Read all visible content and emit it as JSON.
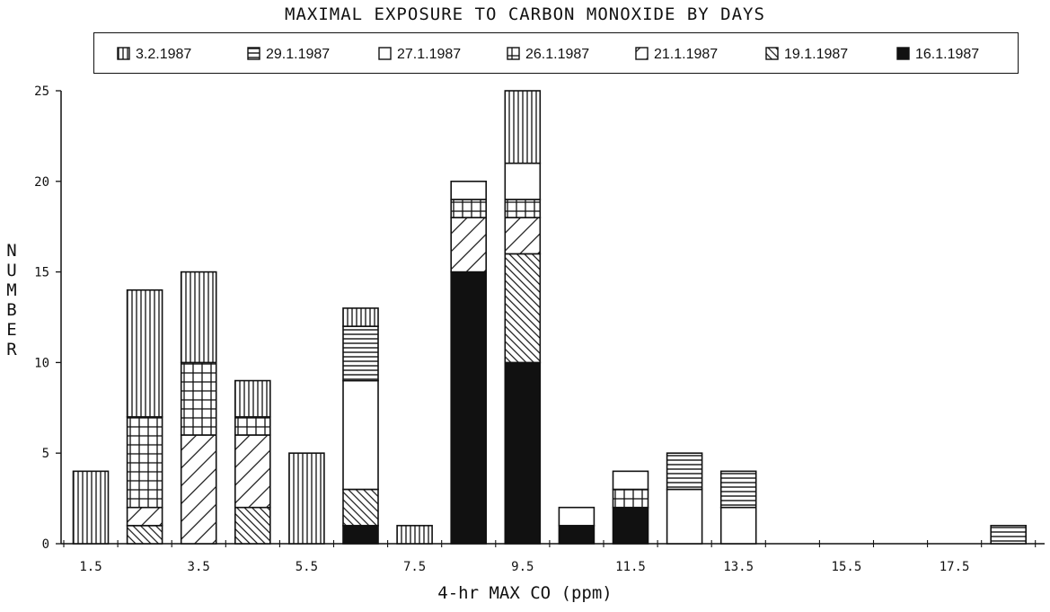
{
  "chart_data": {
    "type": "bar",
    "stacked": true,
    "title": "MAXIMAL EXPOSURE TO CARBON MONOXIDE BY DAYS",
    "xlabel": "4-hr MAX CO (ppm)",
    "ylabel": "NUMBER",
    "x": [
      1.5,
      2.5,
      3.5,
      4.5,
      5.5,
      6.5,
      7.5,
      8.5,
      9.5,
      10.5,
      11.5,
      12.5,
      13.5,
      14.5,
      15.5,
      16.5,
      17.5,
      18.5
    ],
    "x_tick_labels": [
      "1.5",
      "3.5",
      "5.5",
      "7.5",
      "9.5",
      "11.5",
      "13.5",
      "15.5",
      "17.5"
    ],
    "x_tick_values": [
      1.5,
      3.5,
      5.5,
      7.5,
      9.5,
      11.5,
      13.5,
      15.5,
      17.5
    ],
    "xlim": [
      1,
      19
    ],
    "ylim": [
      0,
      25
    ],
    "y_tick_labels": [
      "0",
      "5",
      "10",
      "15",
      "20",
      "25"
    ],
    "y_tick_values": [
      0,
      5,
      10,
      15,
      20,
      25
    ],
    "legend_position": "top",
    "series": [
      {
        "name": "16.1.1987",
        "pattern": "solid",
        "values": [
          0,
          0,
          0,
          0,
          0,
          1,
          0,
          15,
          10,
          1,
          2,
          0,
          0,
          0,
          0,
          0,
          0,
          0
        ]
      },
      {
        "name": "19.1.1987",
        "pattern": "backdiag",
        "values": [
          0,
          1,
          0,
          2,
          0,
          2,
          0,
          0,
          6,
          0,
          0,
          0,
          0,
          0,
          0,
          0,
          0,
          0
        ]
      },
      {
        "name": "21.1.1987",
        "pattern": "diag",
        "values": [
          0,
          1,
          6,
          4,
          0,
          0,
          0,
          3,
          2,
          0,
          0,
          0,
          0,
          0,
          0,
          0,
          0,
          0
        ]
      },
      {
        "name": "26.1.1987",
        "pattern": "grid",
        "values": [
          0,
          5,
          4,
          1,
          0,
          0,
          0,
          1,
          1,
          0,
          1,
          0,
          0,
          0,
          0,
          0,
          0,
          0
        ]
      },
      {
        "name": "27.1.1987",
        "pattern": "empty",
        "values": [
          0,
          0,
          0,
          0,
          0,
          6,
          0,
          1,
          2,
          1,
          1,
          3,
          2,
          0,
          0,
          0,
          0,
          0
        ]
      },
      {
        "name": "29.1.1987",
        "pattern": "horizontal",
        "values": [
          0,
          0,
          0,
          0,
          0,
          3,
          0,
          0,
          0,
          0,
          0,
          2,
          2,
          0,
          0,
          0,
          0,
          1
        ]
      },
      {
        "name": "3.2.1987",
        "pattern": "vertical",
        "values": [
          4,
          7,
          5,
          2,
          5,
          1,
          1,
          0,
          4,
          0,
          0,
          0,
          0,
          0,
          0,
          0,
          0,
          0
        ]
      }
    ],
    "legend_order": [
      "3.2.1987",
      "29.1.1987",
      "27.1.1987",
      "26.1.1987",
      "21.1.1987",
      "19.1.1987",
      "16.1.1987"
    ]
  }
}
